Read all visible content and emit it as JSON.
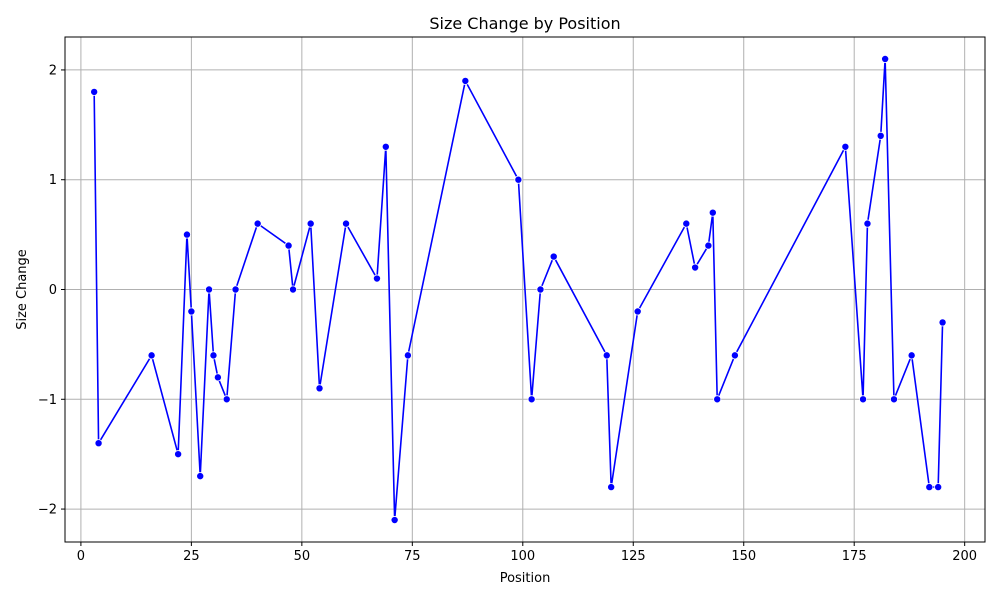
{
  "chart_data": {
    "type": "line",
    "title": "Size Change by Position",
    "xlabel": "Position",
    "ylabel": "Size Change",
    "xlim": [
      -3.6,
      204.6
    ],
    "ylim": [
      -2.3,
      2.3
    ],
    "xticks": [
      0,
      25,
      50,
      75,
      100,
      125,
      150,
      175,
      200
    ],
    "yticks": [
      -2,
      -1,
      0,
      1,
      2
    ],
    "xtick_labels": [
      "0",
      "25",
      "50",
      "75",
      "100",
      "125",
      "150",
      "175",
      "200"
    ],
    "ytick_labels": [
      "−2",
      "−1",
      "0",
      "1",
      "2"
    ],
    "grid": true,
    "legend": "none",
    "series": [
      {
        "color": "#0000ff",
        "marker": "circle",
        "x": [
          3,
          4,
          16,
          22,
          24,
          25,
          27,
          29,
          30,
          31,
          33,
          35,
          40,
          47,
          48,
          52,
          54,
          60,
          67,
          69,
          71,
          74,
          87,
          99,
          102,
          104,
          107,
          119,
          120,
          126,
          137,
          139,
          142,
          143,
          144,
          148,
          173,
          177,
          178,
          181,
          182,
          184,
          188,
          192,
          194,
          195
        ],
        "y": [
          1.8,
          -1.4,
          -0.6,
          -1.5,
          0.5,
          -0.2,
          -1.7,
          0.0,
          -0.6,
          -0.8,
          -1.0,
          0.0,
          0.6,
          0.4,
          0.0,
          0.6,
          -0.9,
          0.6,
          0.1,
          1.3,
          -2.1,
          -0.6,
          1.9,
          1.0,
          -1.0,
          0.0,
          0.3,
          -0.6,
          -1.8,
          -0.2,
          0.6,
          0.2,
          0.4,
          0.7,
          -1.0,
          -0.6,
          1.3,
          -1.0,
          0.6,
          1.4,
          2.1,
          -1.0,
          -0.6,
          -1.8,
          -1.8,
          -0.3
        ]
      }
    ]
  }
}
